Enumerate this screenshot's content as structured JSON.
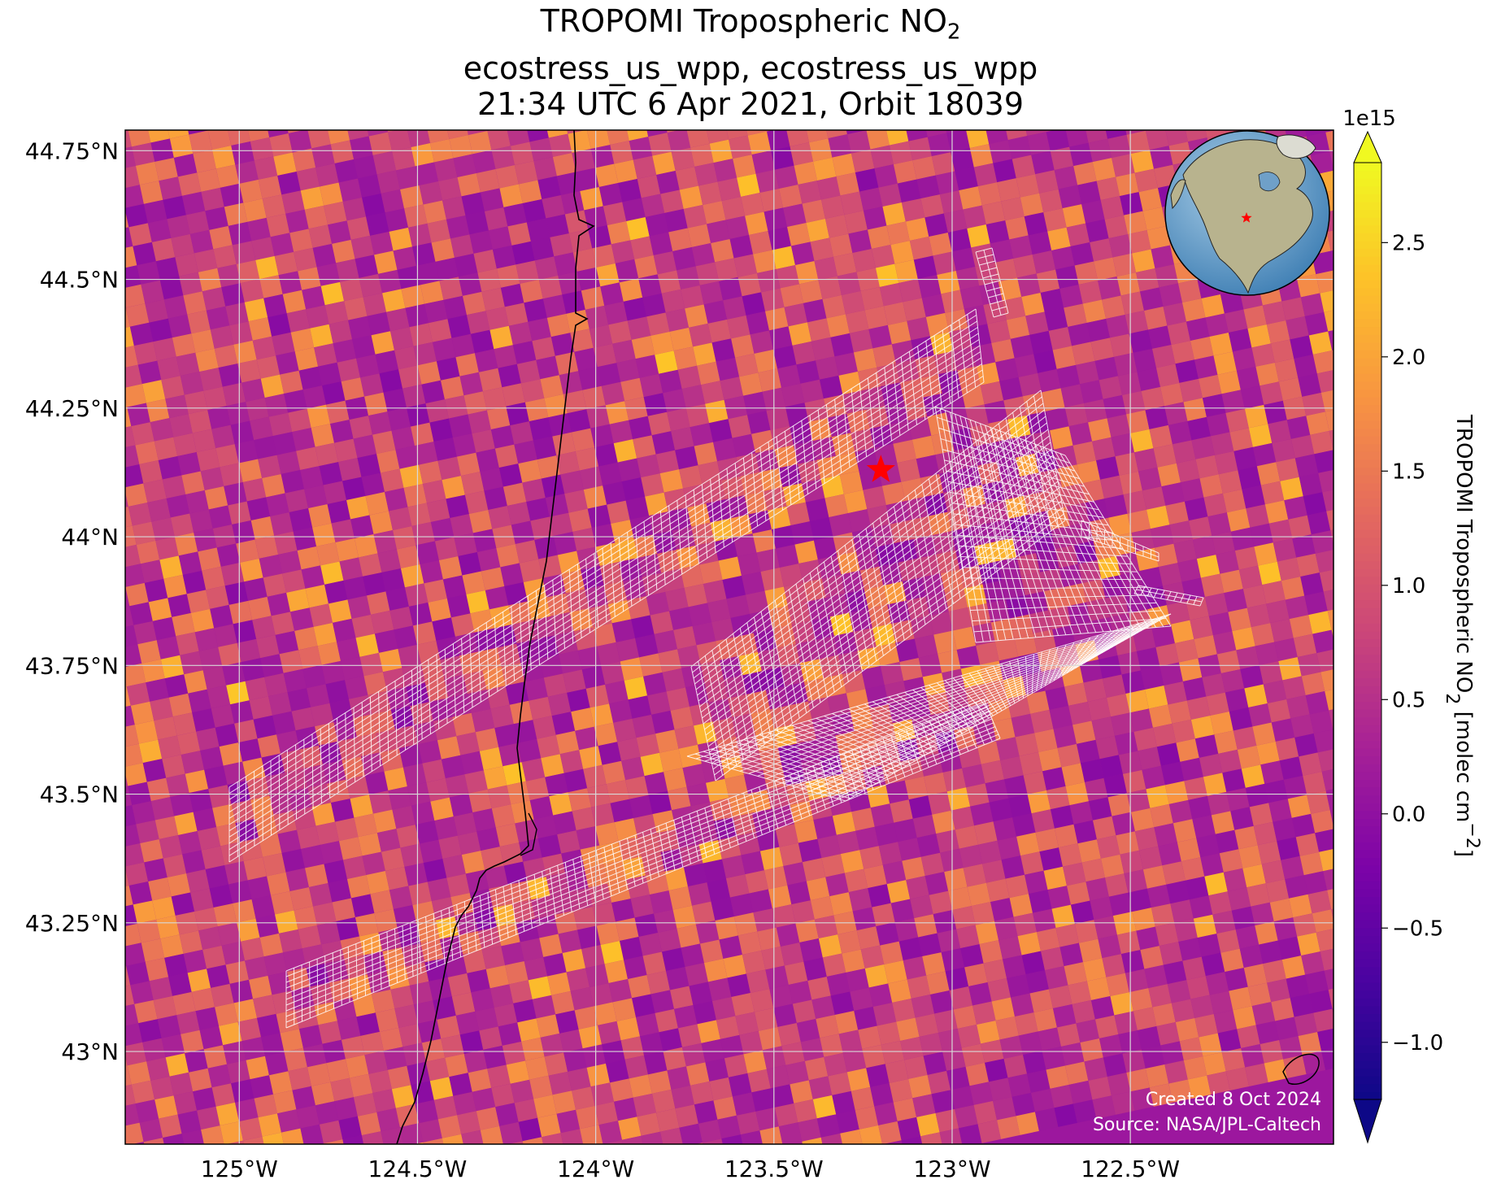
{
  "title": {
    "line1_prefix": "TROPOMI Tropospheric NO",
    "line1_sub": "2",
    "line2": "ecostress_us_wpp, ecostress_us_wpp",
    "line3": "21:34 UTC 6 Apr 2021, Orbit 18039"
  },
  "map": {
    "lon_range": [
      -125.32,
      -121.93
    ],
    "lat_range": [
      42.82,
      44.79
    ],
    "lon_ticks": [
      "125°W",
      "124.5°W",
      "124°W",
      "123.5°W",
      "123°W",
      "122.5°W"
    ],
    "lon_tick_values": [
      -125.0,
      -124.5,
      -124.0,
      -123.5,
      -123.0,
      -122.5
    ],
    "lat_ticks": [
      "44.75°N",
      "44.5°N",
      "44.25°N",
      "44°N",
      "43.75°N",
      "43.5°N",
      "43.25°N",
      "43°N"
    ],
    "lat_tick_values": [
      44.75,
      44.5,
      44.25,
      44.0,
      43.75,
      43.5,
      43.25,
      43.0
    ],
    "gridlines": true,
    "target_marker": {
      "lon": -123.2,
      "lat": 44.13,
      "color": "#ff0000",
      "icon": "star-icon"
    },
    "inset_globe": {
      "placement": "top-right",
      "marker_color": "#ff0000",
      "icon": "globe-icon"
    }
  },
  "colorbar": {
    "colormap": "plasma",
    "vmin": -1.25,
    "vmax": 2.85,
    "exponent_label": "1e15",
    "tick_values": [
      -1.0,
      -0.5,
      0.0,
      0.5,
      1.0,
      1.5,
      2.0,
      2.5
    ],
    "tick_labels": [
      "−1.0",
      "−0.5",
      "0.0",
      "0.5",
      "1.0",
      "1.5",
      "2.0",
      "2.5"
    ],
    "label_prefix": "TROPOMI Tropospheric NO",
    "label_sub": "2",
    "label_suffix": " [molec cm",
    "label_sup": "−2",
    "label_end": "]"
  },
  "credits": {
    "created": "Created 8 Oct 2024",
    "source": "Source: NASA/JPL-Caltech"
  }
}
